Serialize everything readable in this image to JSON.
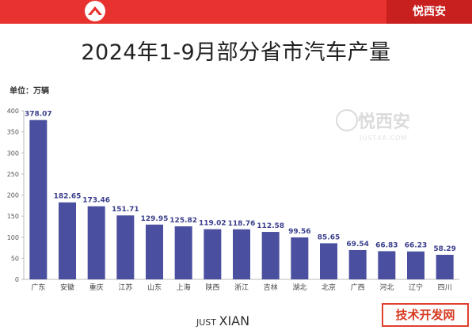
{
  "header": {
    "brand": "悦西安"
  },
  "title": "2024年1-9月部分省市汽车产量",
  "unit_label": "单位：万辆",
  "watermark": {
    "text": "悦西安",
    "sub": "JUSTXA.COM"
  },
  "footer": {
    "prefix": "JUST",
    "main": "XIAN"
  },
  "site_mark": "技术开发网",
  "colors": {
    "bar": "#4a4f9f",
    "accent": "#e8322f",
    "value_label": "#3b3f8c"
  },
  "chart_data": {
    "type": "bar",
    "title": "2024年1-9月部分省市汽车产量",
    "ylabel": "单位：万辆",
    "categories": [
      "广东",
      "安徽",
      "重庆",
      "江苏",
      "山东",
      "上海",
      "陕西",
      "浙江",
      "吉林",
      "湖北",
      "北京",
      "广西",
      "河北",
      "辽宁",
      "四川"
    ],
    "values": [
      378.07,
      182.65,
      173.46,
      151.71,
      129.95,
      125.82,
      119.02,
      118.76,
      112.58,
      99.56,
      85.65,
      69.54,
      66.83,
      66.23,
      58.29
    ],
    "ylim": [
      0,
      400
    ],
    "yticks": [
      0,
      50,
      100,
      150,
      200,
      250,
      300,
      350,
      400
    ],
    "grid": false
  }
}
